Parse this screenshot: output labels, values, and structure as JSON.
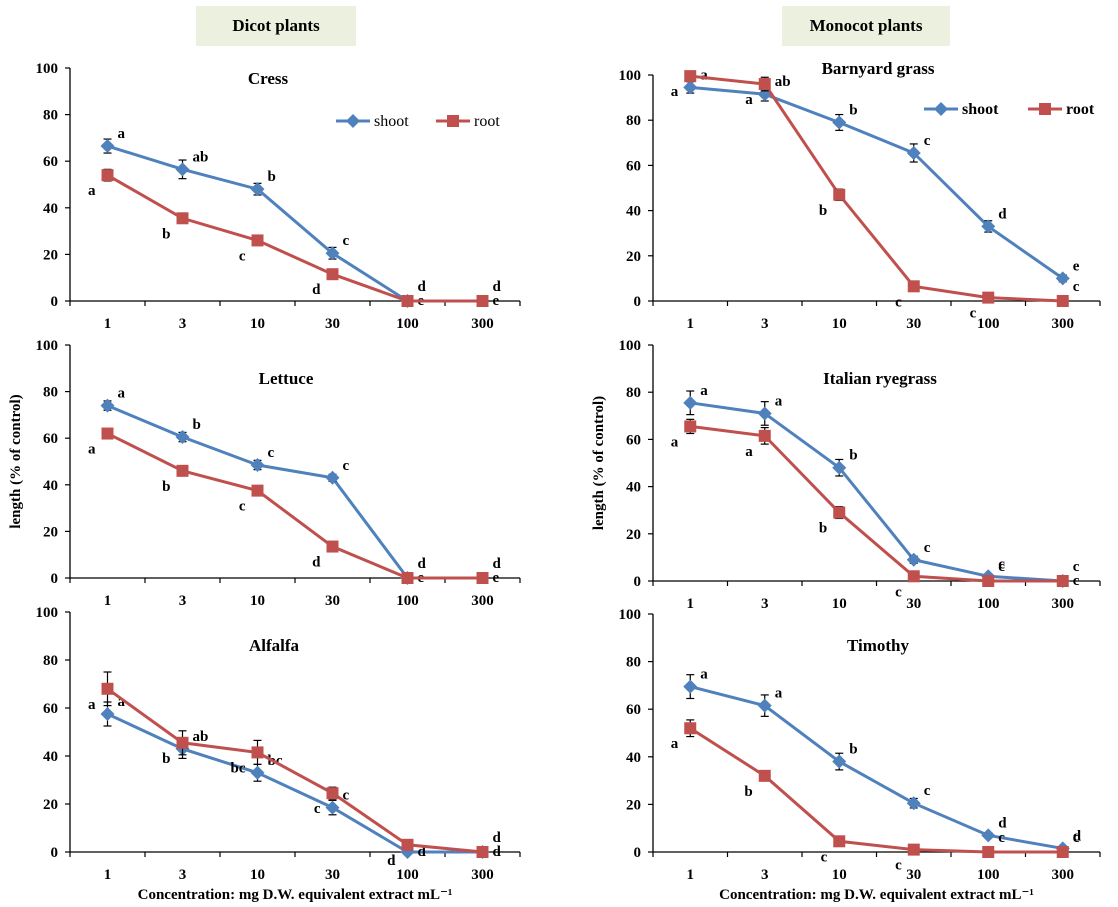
{
  "header": {
    "dicot_label": "Dicot plants",
    "monocot_label": "Monocot plants"
  },
  "xlabel": "Concentration: mg D.W. equivalent extract mL⁻¹",
  "ylabel": "length (% of control)",
  "colors": {
    "shoot": "#4f81bd",
    "root": "#c0504d"
  },
  "chart_data": [
    {
      "type": "line",
      "title": "Cress",
      "group": "Dicot plants",
      "categories": [
        "1",
        "3",
        "10",
        "30",
        "100",
        "300"
      ],
      "ylim": [
        0,
        100
      ],
      "yticks": [
        "0",
        "20",
        "40",
        "60",
        "80",
        "100"
      ],
      "legend": "top-right",
      "series": [
        {
          "name": "shoot",
          "values": [
            66.5,
            56.5,
            48,
            20.5,
            0,
            null
          ],
          "errors": [
            3,
            4,
            2.5,
            2.5,
            0,
            null
          ],
          "letters": [
            {
              "i": 0,
              "t": "a"
            },
            {
              "i": 1,
              "t": "ab"
            },
            {
              "i": 2,
              "t": "b"
            },
            {
              "i": 3,
              "t": "c"
            },
            {
              "i": 4,
              "t": "e"
            },
            {
              "i": 5,
              "t": "e"
            }
          ]
        },
        {
          "name": "root",
          "values": [
            54,
            35.5,
            26,
            11.5,
            0,
            0
          ],
          "errors": [
            2.5,
            2,
            1.5,
            1.5,
            0,
            0
          ],
          "letters": [
            {
              "i": 0,
              "t": "a"
            },
            {
              "i": 1,
              "t": "b"
            },
            {
              "i": 2,
              "t": "c"
            },
            {
              "i": 3,
              "t": "d"
            },
            {
              "i": 4,
              "t": "d"
            },
            {
              "i": 5,
              "t": "d"
            }
          ]
        }
      ]
    },
    {
      "type": "line",
      "title": "Barnyard grass",
      "group": "Monocot plants",
      "categories": [
        "1",
        "3",
        "10",
        "30",
        "100",
        "300"
      ],
      "ylim": [
        0,
        100
      ],
      "yticks": [
        "0",
        "20",
        "40",
        "60",
        "80",
        "100"
      ],
      "legend": "top-right",
      "series": [
        {
          "name": "shoot",
          "values": [
            94.5,
            91.5,
            79,
            65.5,
            33,
            10
          ],
          "errors": [
            2.5,
            3,
            3.5,
            4,
            2.5,
            1.5
          ],
          "letters": [
            {
              "i": 0,
              "t": "a"
            },
            {
              "i": 1,
              "t": "ab"
            },
            {
              "i": 2,
              "t": "b"
            },
            {
              "i": 3,
              "t": "c"
            },
            {
              "i": 4,
              "t": "d"
            },
            {
              "i": 5,
              "t": "e"
            }
          ]
        },
        {
          "name": "root",
          "values": [
            99.5,
            96,
            47,
            6.5,
            1.5,
            0
          ],
          "errors": [
            2,
            3,
            2.5,
            1,
            0.5,
            0
          ],
          "letters": [
            {
              "i": 0,
              "t": "a"
            },
            {
              "i": 1,
              "t": "a"
            },
            {
              "i": 2,
              "t": "b"
            },
            {
              "i": 3,
              "t": "c"
            },
            {
              "i": 4,
              "t": "c"
            },
            {
              "i": 5,
              "t": "c"
            }
          ]
        }
      ]
    },
    {
      "type": "line",
      "title": "Lettuce",
      "group": "Dicot plants",
      "categories": [
        "1",
        "3",
        "10",
        "30",
        "100",
        "300"
      ],
      "ylim": [
        0,
        100
      ],
      "yticks": [
        "0",
        "20",
        "40",
        "60",
        "80",
        "100"
      ],
      "legend": "",
      "series": [
        {
          "name": "shoot",
          "values": [
            74,
            60.5,
            48.5,
            43,
            0,
            null
          ],
          "errors": [
            2,
            2,
            2,
            1.5,
            0,
            null
          ],
          "letters": [
            {
              "i": 0,
              "t": "a"
            },
            {
              "i": 1,
              "t": "b"
            },
            {
              "i": 2,
              "t": "c"
            },
            {
              "i": 3,
              "t": "c"
            },
            {
              "i": 4,
              "t": "e"
            },
            {
              "i": 5,
              "t": "e"
            }
          ]
        },
        {
          "name": "root",
          "values": [
            62,
            46,
            37.5,
            13.5,
            0,
            0
          ],
          "errors": [
            1.5,
            1.5,
            1.5,
            1,
            0,
            0
          ],
          "letters": [
            {
              "i": 0,
              "t": "a"
            },
            {
              "i": 1,
              "t": "b"
            },
            {
              "i": 2,
              "t": "c"
            },
            {
              "i": 3,
              "t": "d"
            },
            {
              "i": 4,
              "t": "d"
            },
            {
              "i": 5,
              "t": "d"
            }
          ]
        }
      ]
    },
    {
      "type": "line",
      "title": "Italian ryegrass",
      "group": "Monocot plants",
      "categories": [
        "1",
        "3",
        "10",
        "30",
        "100",
        "300"
      ],
      "ylim": [
        0,
        100
      ],
      "yticks": [
        "0",
        "20",
        "40",
        "60",
        "80",
        "100"
      ],
      "legend": "",
      "series": [
        {
          "name": "shoot",
          "values": [
            75.5,
            71,
            48,
            9,
            2,
            0
          ],
          "errors": [
            5,
            5,
            3.5,
            1.5,
            0.5,
            0
          ],
          "letters": [
            {
              "i": 0,
              "t": "a"
            },
            {
              "i": 1,
              "t": "a"
            },
            {
              "i": 2,
              "t": "b"
            },
            {
              "i": 3,
              "t": "c"
            },
            {
              "i": 4,
              "t": "c"
            },
            {
              "i": 5,
              "t": "c"
            }
          ]
        },
        {
          "name": "root",
          "values": [
            65.5,
            61.5,
            29,
            2,
            0,
            0
          ],
          "errors": [
            3,
            3.5,
            2.5,
            0.5,
            0,
            0
          ],
          "letters": [
            {
              "i": 0,
              "t": "a"
            },
            {
              "i": 1,
              "t": "a"
            },
            {
              "i": 2,
              "t": "b"
            },
            {
              "i": 3,
              "t": "c"
            },
            {
              "i": 4,
              "t": "c"
            },
            {
              "i": 5,
              "t": "c"
            }
          ]
        }
      ]
    },
    {
      "type": "line",
      "title": "Alfalfa",
      "group": "Dicot plants",
      "categories": [
        "1",
        "3",
        "10",
        "30",
        "100",
        "300"
      ],
      "ylim": [
        0,
        100
      ],
      "yticks": [
        "0",
        "20",
        "40",
        "60",
        "80",
        "100"
      ],
      "legend": "",
      "series": [
        {
          "name": "shoot",
          "values": [
            57.5,
            43,
            33,
            18.5,
            0,
            0
          ],
          "errors": [
            5,
            4,
            3.5,
            3,
            0,
            0
          ],
          "letters": [
            {
              "i": 0,
              "t": "a"
            },
            {
              "i": 1,
              "t": "ab"
            },
            {
              "i": 2,
              "t": "bc"
            },
            {
              "i": 3,
              "t": "c"
            },
            {
              "i": 4,
              "t": "d"
            },
            {
              "i": 5,
              "t": "d"
            }
          ]
        },
        {
          "name": "root",
          "values": [
            68,
            45.5,
            41.5,
            24.5,
            3,
            0
          ],
          "errors": [
            7,
            5,
            5,
            2.5,
            1,
            0
          ],
          "letters": [
            {
              "i": 0,
              "t": "a"
            },
            {
              "i": 1,
              "t": "b"
            },
            {
              "i": 2,
              "t": "bc"
            },
            {
              "i": 3,
              "t": "c"
            },
            {
              "i": 4,
              "t": "d"
            },
            {
              "i": 5,
              "t": "d"
            }
          ]
        }
      ]
    },
    {
      "type": "line",
      "title": "Timothy",
      "group": "Monocot plants",
      "categories": [
        "1",
        "3",
        "10",
        "30",
        "100",
        "300"
      ],
      "ylim": [
        0,
        100
      ],
      "yticks": [
        "0",
        "20",
        "40",
        "60",
        "80",
        "100"
      ],
      "legend": "",
      "series": [
        {
          "name": "shoot",
          "values": [
            69.5,
            61.5,
            38,
            20.5,
            7,
            1.5
          ],
          "errors": [
            5,
            4.5,
            3.5,
            2,
            1,
            0.5
          ],
          "letters": [
            {
              "i": 0,
              "t": "a"
            },
            {
              "i": 1,
              "t": "a"
            },
            {
              "i": 2,
              "t": "b"
            },
            {
              "i": 3,
              "t": "c"
            },
            {
              "i": 4,
              "t": "d"
            },
            {
              "i": 5,
              "t": "d"
            }
          ]
        },
        {
          "name": "root",
          "values": [
            52,
            32,
            4.5,
            1,
            0,
            0
          ],
          "errors": [
            3.5,
            2,
            1,
            0.5,
            0,
            0
          ],
          "letters": [
            {
              "i": 0,
              "t": "a"
            },
            {
              "i": 1,
              "t": "b"
            },
            {
              "i": 2,
              "t": "c"
            },
            {
              "i": 3,
              "t": "c"
            },
            {
              "i": 4,
              "t": "c"
            },
            {
              "i": 5,
              "t": "c"
            }
          ]
        }
      ]
    }
  ]
}
